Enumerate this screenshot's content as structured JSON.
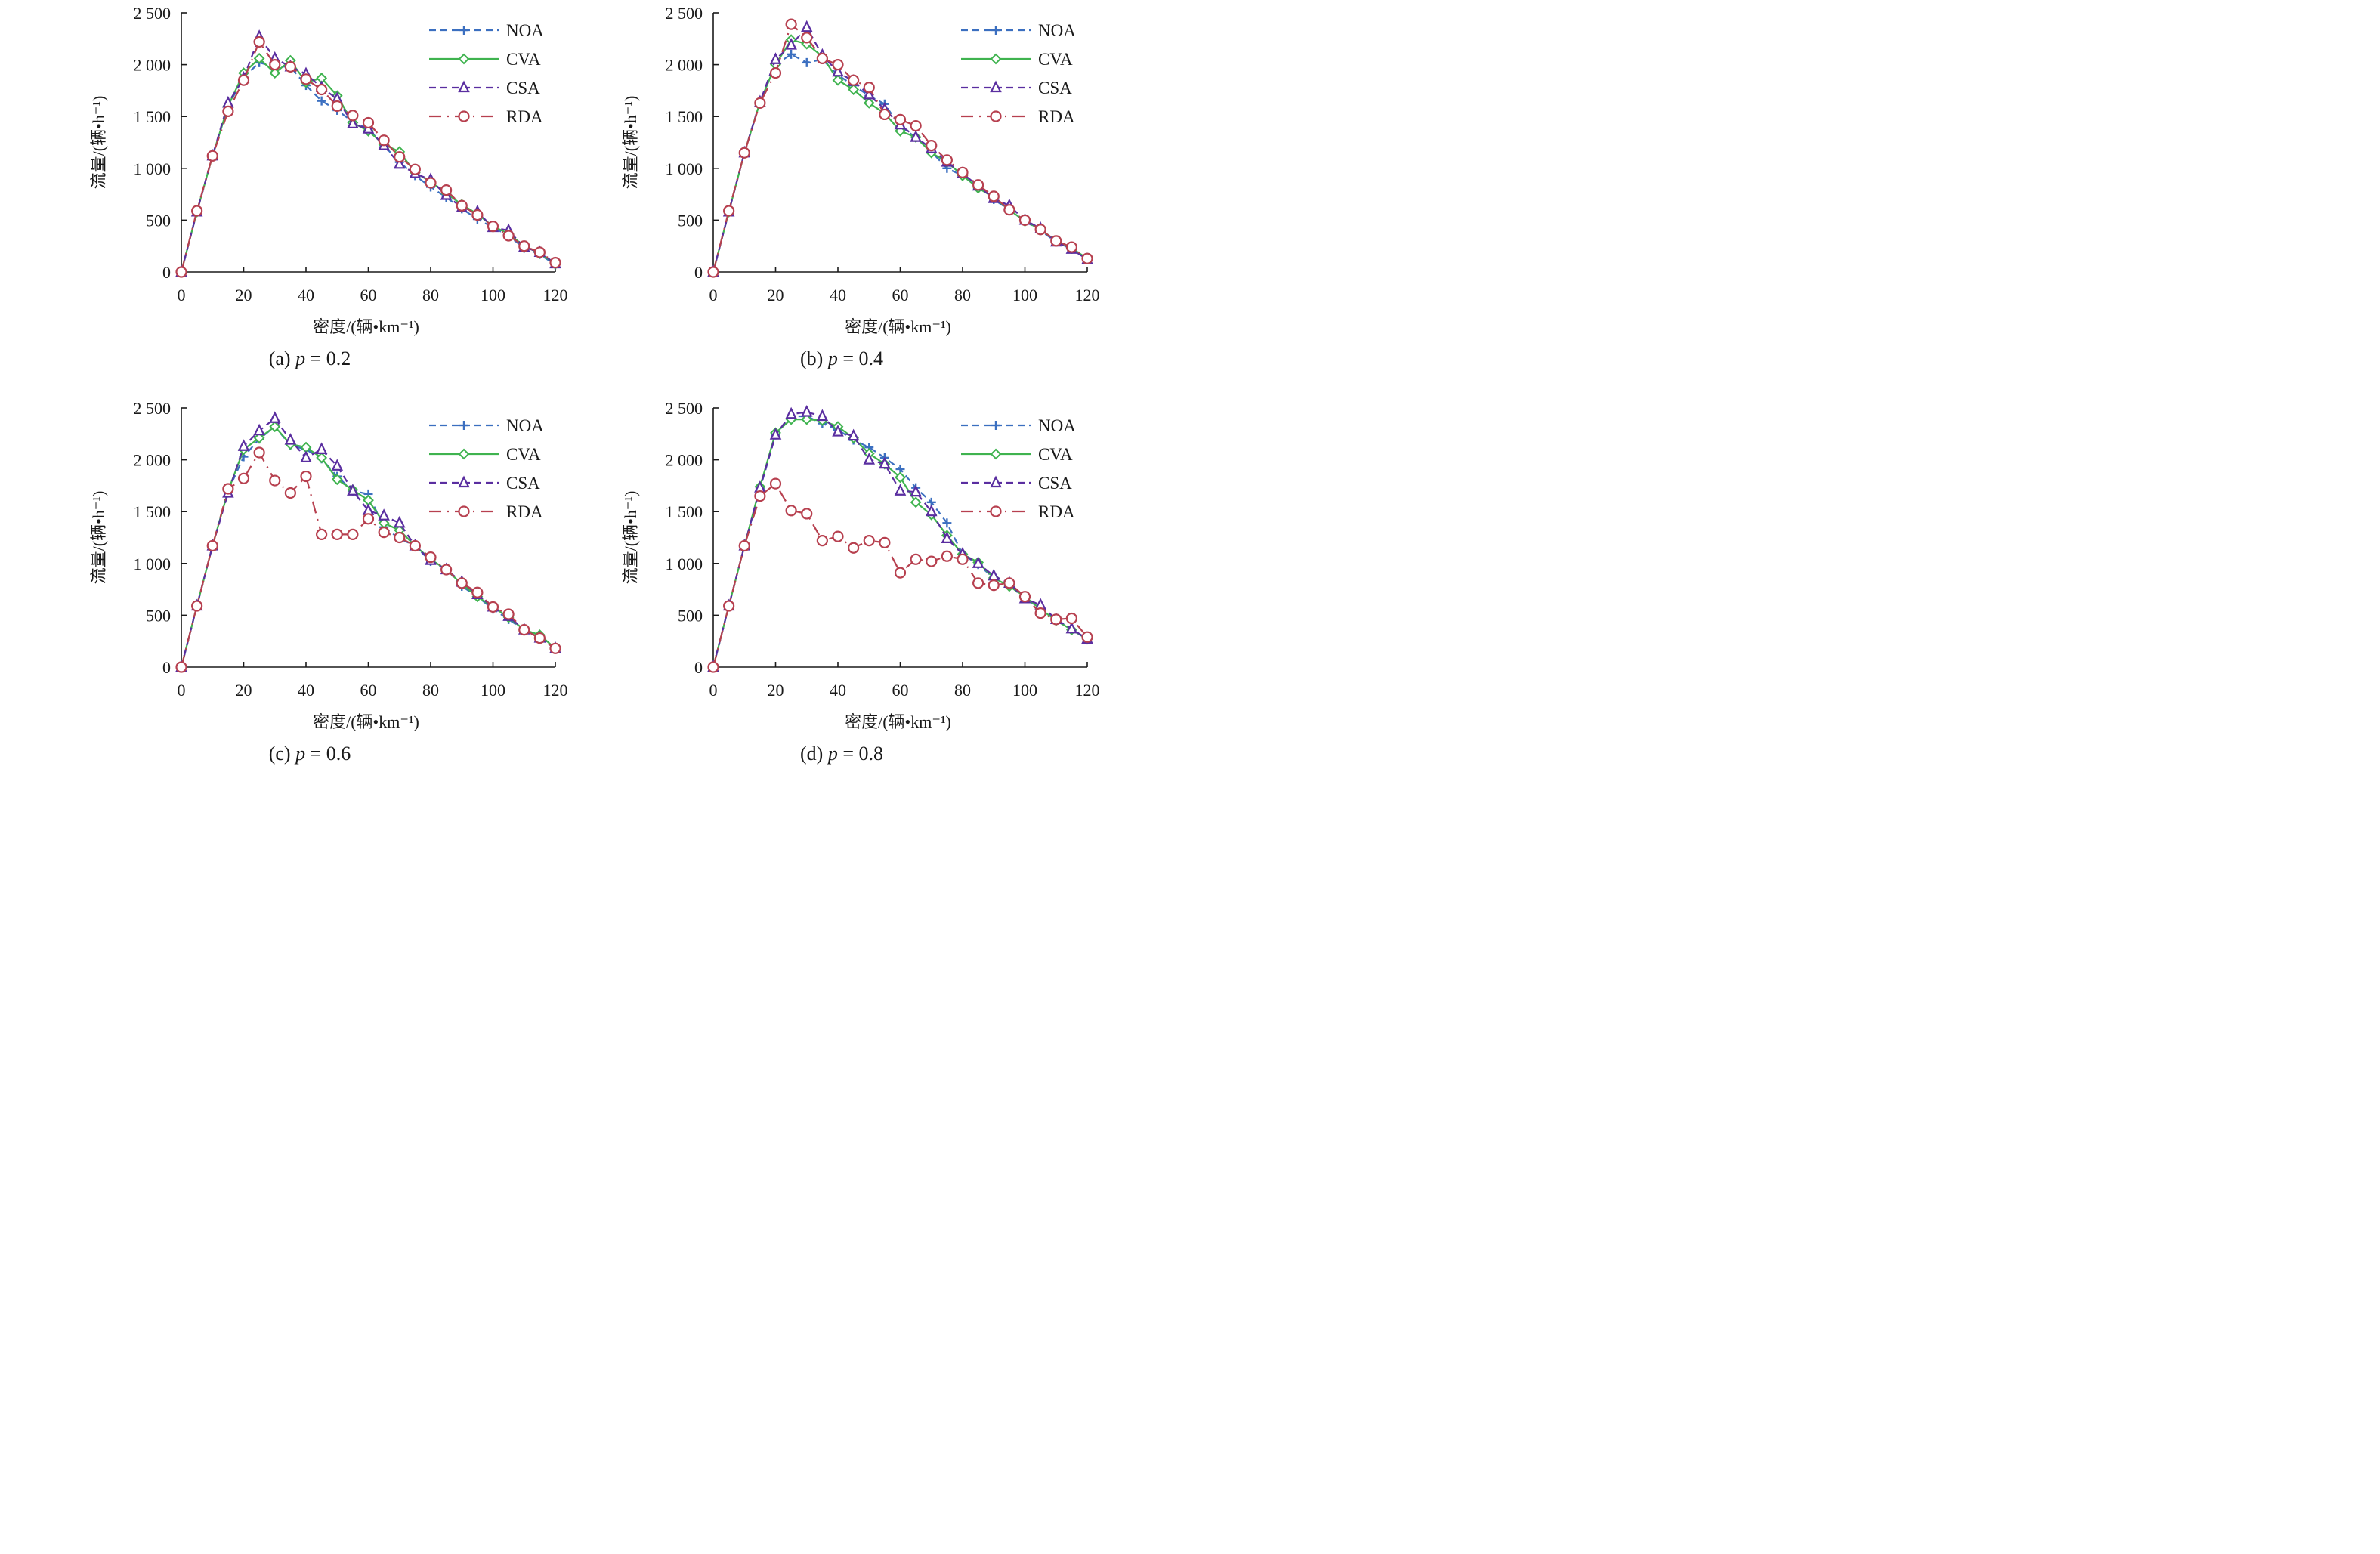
{
  "series_style": {
    "NOA": {
      "color": "#3b6fc0",
      "marker": "plus",
      "dash": "dash"
    },
    "CVA": {
      "color": "#3fb34f",
      "marker": "diamond",
      "dash": "solid"
    },
    "CSA": {
      "color": "#5a2ea0",
      "marker": "triangle",
      "dash": "dash"
    },
    "RDA": {
      "color": "#b7404f",
      "marker": "circle",
      "dash": "longdash-dot"
    }
  },
  "chart_data": [
    {
      "type": "line",
      "title": "",
      "caption_prefix": "(a) ",
      "caption_var": "p",
      "caption_value": " = 0.2",
      "xlabel": "密度/(辆•km⁻¹)",
      "ylabel": "流量/(辆•h⁻¹)",
      "xlim": [
        0,
        120
      ],
      "ylim": [
        0,
        2500
      ],
      "xticks": [
        0,
        20,
        40,
        60,
        80,
        100,
        120
      ],
      "yticks": [
        0,
        500,
        1000,
        1500,
        2000,
        2500
      ],
      "ytick_labels": [
        "0",
        "500",
        "1 000",
        "1 500",
        "2 000",
        "2 500"
      ],
      "grid": false,
      "legend": "top-right",
      "x": [
        0,
        5,
        10,
        15,
        20,
        25,
        30,
        35,
        40,
        45,
        50,
        55,
        60,
        65,
        70,
        75,
        80,
        85,
        90,
        95,
        100,
        105,
        110,
        115,
        120
      ],
      "series": [
        {
          "name": "NOA",
          "values": [
            0,
            580,
            1120,
            1600,
            1880,
            2020,
            1980,
            1980,
            1800,
            1650,
            1560,
            1450,
            1380,
            1220,
            1060,
            930,
            820,
            720,
            610,
            510,
            430,
            350,
            230,
            170,
            70
          ]
        },
        {
          "name": "CVA",
          "values": [
            0,
            580,
            1120,
            1600,
            1920,
            2060,
            1920,
            2040,
            1830,
            1870,
            1700,
            1440,
            1360,
            1230,
            1160,
            960,
            870,
            760,
            650,
            560,
            440,
            370,
            250,
            180,
            80
          ]
        },
        {
          "name": "CSA",
          "values": [
            0,
            580,
            1120,
            1630,
            1870,
            2270,
            2060,
            1980,
            1910,
            1780,
            1670,
            1430,
            1380,
            1220,
            1040,
            950,
            890,
            740,
            620,
            580,
            430,
            400,
            240,
            190,
            80
          ]
        },
        {
          "name": "RDA",
          "values": [
            0,
            590,
            1120,
            1550,
            1850,
            2220,
            2000,
            1980,
            1860,
            1760,
            1600,
            1510,
            1440,
            1270,
            1110,
            990,
            860,
            790,
            640,
            550,
            440,
            350,
            250,
            190,
            90
          ]
        }
      ]
    },
    {
      "type": "line",
      "title": "",
      "caption_prefix": "(b) ",
      "caption_var": "p",
      "caption_value": " = 0.4",
      "xlabel": "密度/(辆•km⁻¹)",
      "ylabel": "流量/(辆•h⁻¹)",
      "xlim": [
        0,
        120
      ],
      "ylim": [
        0,
        2500
      ],
      "xticks": [
        0,
        20,
        40,
        60,
        80,
        100,
        120
      ],
      "yticks": [
        0,
        500,
        1000,
        1500,
        2000,
        2500
      ],
      "ytick_labels": [
        "0",
        "500",
        "1 000",
        "1 500",
        "2 000",
        "2 500"
      ],
      "grid": false,
      "legend": "top-right",
      "x": [
        0,
        5,
        10,
        15,
        20,
        25,
        30,
        35,
        40,
        45,
        50,
        55,
        60,
        65,
        70,
        75,
        80,
        85,
        90,
        95,
        100,
        105,
        110,
        115,
        120
      ],
      "series": [
        {
          "name": "NOA",
          "values": [
            0,
            580,
            1150,
            1640,
            2000,
            2100,
            2020,
            2050,
            1900,
            1800,
            1700,
            1620,
            1400,
            1300,
            1160,
            1000,
            930,
            840,
            700,
            600,
            490,
            400,
            290,
            220,
            130
          ]
        },
        {
          "name": "CVA",
          "values": [
            0,
            580,
            1150,
            1640,
            2000,
            2240,
            2200,
            2080,
            1850,
            1760,
            1630,
            1530,
            1360,
            1300,
            1150,
            1060,
            930,
            810,
            720,
            600,
            490,
            410,
            300,
            230,
            130
          ]
        },
        {
          "name": "CSA",
          "values": [
            0,
            580,
            1150,
            1640,
            2050,
            2190,
            2360,
            2090,
            1930,
            1840,
            1710,
            1570,
            1420,
            1300,
            1190,
            1060,
            950,
            830,
            710,
            640,
            500,
            420,
            290,
            220,
            120
          ]
        },
        {
          "name": "RDA",
          "values": [
            0,
            590,
            1150,
            1630,
            1920,
            2390,
            2260,
            2060,
            2000,
            1850,
            1780,
            1520,
            1470,
            1410,
            1220,
            1080,
            960,
            840,
            730,
            600,
            500,
            410,
            300,
            240,
            130
          ]
        }
      ]
    },
    {
      "type": "line",
      "title": "",
      "caption_prefix": "(c) ",
      "caption_var": "p",
      "caption_value": " = 0.6",
      "xlabel": "密度/(辆•km⁻¹)",
      "ylabel": "流量/(辆•h⁻¹)",
      "xlim": [
        0,
        120
      ],
      "ylim": [
        0,
        2500
      ],
      "xticks": [
        0,
        20,
        40,
        60,
        80,
        100,
        120
      ],
      "yticks": [
        0,
        500,
        1000,
        1500,
        2000,
        2500
      ],
      "ytick_labels": [
        "0",
        "500",
        "1 000",
        "1 500",
        "2 000",
        "2 500"
      ],
      "grid": false,
      "legend": "top-right",
      "x": [
        0,
        5,
        10,
        15,
        20,
        25,
        30,
        35,
        40,
        45,
        50,
        55,
        60,
        65,
        70,
        75,
        80,
        85,
        90,
        95,
        100,
        105,
        110,
        115,
        120
      ],
      "series": [
        {
          "name": "NOA",
          "values": [
            0,
            590,
            1170,
            1700,
            2030,
            2200,
            2320,
            2140,
            2100,
            2010,
            1840,
            1700,
            1670,
            1350,
            1240,
            1170,
            1020,
            950,
            780,
            680,
            560,
            460,
            360,
            280,
            180
          ]
        },
        {
          "name": "CVA",
          "values": [
            0,
            590,
            1170,
            1700,
            2100,
            2210,
            2320,
            2150,
            2120,
            2020,
            1810,
            1710,
            1610,
            1390,
            1320,
            1170,
            1040,
            940,
            800,
            680,
            580,
            480,
            360,
            310,
            180
          ]
        },
        {
          "name": "CSA",
          "values": [
            0,
            590,
            1170,
            1680,
            2130,
            2280,
            2400,
            2190,
            2020,
            2100,
            1940,
            1700,
            1510,
            1460,
            1390,
            1170,
            1030,
            940,
            820,
            700,
            580,
            490,
            360,
            280,
            180
          ]
        },
        {
          "name": "RDA",
          "values": [
            0,
            590,
            1170,
            1720,
            1820,
            2070,
            1800,
            1680,
            1840,
            1280,
            1280,
            1280,
            1430,
            1300,
            1250,
            1170,
            1060,
            940,
            810,
            720,
            580,
            510,
            360,
            280,
            180
          ]
        }
      ]
    },
    {
      "type": "line",
      "title": "",
      "caption_prefix": "(d) ",
      "caption_var": "p",
      "caption_value": " = 0.8",
      "xlabel": "密度/(辆•km⁻¹)",
      "ylabel": "流量/(辆•h⁻¹)",
      "xlim": [
        0,
        120
      ],
      "ylim": [
        0,
        2500
      ],
      "xticks": [
        0,
        20,
        40,
        60,
        80,
        100,
        120
      ],
      "yticks": [
        0,
        500,
        1000,
        1500,
        2000,
        2500
      ],
      "ytick_labels": [
        "0",
        "500",
        "1 000",
        "1 500",
        "2 000",
        "2 500"
      ],
      "grid": false,
      "legend": "top-right",
      "x": [
        0,
        5,
        10,
        15,
        20,
        25,
        30,
        35,
        40,
        45,
        50,
        55,
        60,
        65,
        70,
        75,
        80,
        85,
        90,
        95,
        100,
        105,
        110,
        115,
        120
      ],
      "series": [
        {
          "name": "NOA",
          "values": [
            0,
            590,
            1170,
            1720,
            2240,
            2420,
            2420,
            2350,
            2290,
            2190,
            2120,
            2020,
            1910,
            1730,
            1590,
            1390,
            1090,
            990,
            860,
            790,
            660,
            570,
            460,
            360,
            270
          ]
        },
        {
          "name": "CVA",
          "values": [
            0,
            590,
            1170,
            1740,
            2260,
            2390,
            2390,
            2380,
            2320,
            2210,
            2060,
            1960,
            1830,
            1590,
            1470,
            1270,
            1090,
            1010,
            860,
            780,
            680,
            560,
            450,
            360,
            270
          ]
        },
        {
          "name": "CSA",
          "values": [
            0,
            590,
            1170,
            1730,
            2240,
            2440,
            2460,
            2420,
            2270,
            2230,
            2000,
            1960,
            1700,
            1690,
            1500,
            1240,
            1090,
            1000,
            880,
            810,
            660,
            600,
            460,
            370,
            270
          ]
        },
        {
          "name": "RDA",
          "values": [
            0,
            590,
            1170,
            1650,
            1770,
            1510,
            1480,
            1220,
            1260,
            1150,
            1220,
            1200,
            910,
            1040,
            1020,
            1070,
            1040,
            810,
            790,
            810,
            680,
            520,
            460,
            470,
            290
          ]
        }
      ]
    }
  ]
}
